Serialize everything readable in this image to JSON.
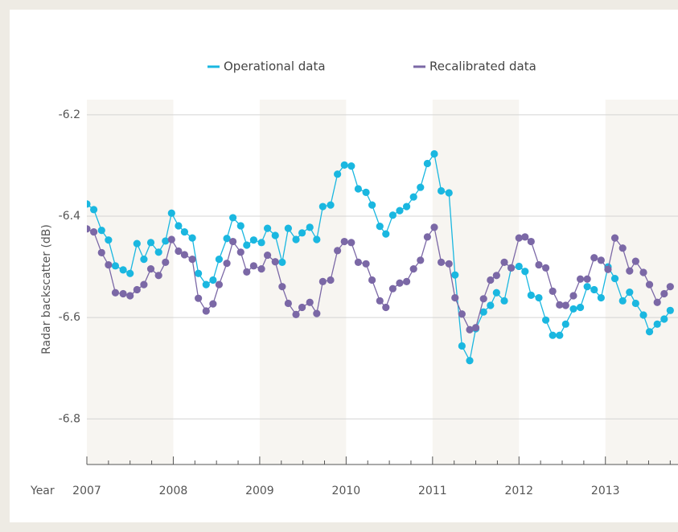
{
  "chart_data": {
    "type": "line",
    "xlabel": "Year",
    "ylabel": "Radar backscatter (dB)",
    "x": [
      2007.0,
      2007.08,
      2007.17,
      2007.25,
      2007.33,
      2007.42,
      2007.5,
      2007.58,
      2007.66,
      2007.74,
      2007.83,
      2007.91,
      2007.98,
      2008.06,
      2008.13,
      2008.22,
      2008.29,
      2008.38,
      2008.46,
      2008.53,
      2008.62,
      2008.69,
      2008.78,
      2008.85,
      2008.93,
      2009.02,
      2009.09,
      2009.18,
      2009.26,
      2009.33,
      2009.42,
      2009.49,
      2009.58,
      2009.66,
      2009.73,
      2009.82,
      2009.9,
      2009.98,
      2010.06,
      2010.14,
      2010.23,
      2010.3,
      2010.39,
      2010.46,
      2010.54,
      2010.62,
      2010.7,
      2010.78,
      2010.86,
      2010.94,
      2011.02,
      2011.1,
      2011.19,
      2011.26,
      2011.34,
      2011.43,
      2011.5,
      2011.59,
      2011.67,
      2011.74,
      2011.83,
      2011.91,
      2012.0,
      2012.07,
      2012.14,
      2012.23,
      2012.31,
      2012.39,
      2012.47,
      2012.54,
      2012.63,
      2012.71,
      2012.79,
      2012.87,
      2012.95,
      2013.03,
      2013.11,
      2013.2,
      2013.28,
      2013.35,
      2013.44,
      2013.51,
      2013.6,
      2013.68,
      2013.75
    ],
    "series": [
      {
        "name": "Operational data",
        "color": "#1ab7e0",
        "values": [
          -6.376,
          -6.387,
          -6.428,
          -6.447,
          -6.498,
          -6.506,
          -6.513,
          -6.454,
          -6.485,
          -6.452,
          -6.471,
          -6.449,
          -6.394,
          -6.419,
          -6.431,
          -6.443,
          -6.513,
          -6.535,
          -6.526,
          -6.485,
          -6.444,
          -6.403,
          -6.419,
          -6.457,
          -6.447,
          -6.452,
          -6.424,
          -6.438,
          -6.491,
          -6.424,
          -6.446,
          -6.433,
          -6.422,
          -6.446,
          -6.381,
          -6.378,
          -6.317,
          -6.299,
          -6.301,
          -6.346,
          -6.353,
          -6.378,
          -6.42,
          -6.435,
          -6.398,
          -6.389,
          -6.381,
          -6.362,
          -6.343,
          -6.296,
          -6.277,
          -6.35,
          -6.354,
          -6.516,
          -6.656,
          -6.685,
          -6.622,
          -6.589,
          -6.576,
          -6.551,
          -6.567,
          -6.502,
          -6.499,
          -6.509,
          -6.556,
          -6.561,
          -6.605,
          -6.635,
          -6.635,
          -6.613,
          -6.583,
          -6.58,
          -6.539,
          -6.545,
          -6.561,
          -6.5,
          -6.523,
          -6.567,
          -6.55,
          -6.572,
          -6.595,
          -6.628,
          -6.613,
          -6.603,
          -6.586
        ]
      },
      {
        "name": "Recalibrated data",
        "color": "#7b68a6",
        "values": [
          -6.425,
          -6.431,
          -6.472,
          -6.496,
          -6.551,
          -6.553,
          -6.557,
          -6.545,
          -6.535,
          -6.504,
          -6.517,
          -6.491,
          -6.446,
          -6.469,
          -6.476,
          -6.485,
          -6.562,
          -6.587,
          -6.573,
          -6.535,
          -6.493,
          -6.45,
          -6.471,
          -6.51,
          -6.498,
          -6.504,
          -6.477,
          -6.49,
          -6.539,
          -6.572,
          -6.594,
          -6.58,
          -6.57,
          -6.592,
          -6.529,
          -6.526,
          -6.468,
          -6.45,
          -6.452,
          -6.491,
          -6.494,
          -6.526,
          -6.567,
          -6.58,
          -6.543,
          -6.532,
          -6.529,
          -6.504,
          -6.487,
          -6.441,
          -6.422,
          -6.491,
          -6.494,
          -6.561,
          -6.593,
          -6.624,
          -6.62,
          -6.563,
          -6.526,
          -6.517,
          -6.491,
          -6.502,
          -6.443,
          -6.441,
          -6.45,
          -6.496,
          -6.502,
          -6.548,
          -6.575,
          -6.576,
          -6.557,
          -6.524,
          -6.524,
          -6.482,
          -6.487,
          -6.505,
          -6.443,
          -6.463,
          -6.508,
          -6.489,
          -6.511,
          -6.535,
          -6.57,
          -6.553,
          -6.539
        ]
      }
    ],
    "xlim": [
      2007,
      2013.84
    ],
    "xticks": [
      2007,
      2008,
      2009,
      2010,
      2011,
      2012,
      2013
    ],
    "ylim": [
      -6.89,
      -6.17
    ],
    "yticks": [
      -6.2,
      -6.4,
      -6.6,
      -6.8
    ],
    "grid": true,
    "legend": "top"
  }
}
